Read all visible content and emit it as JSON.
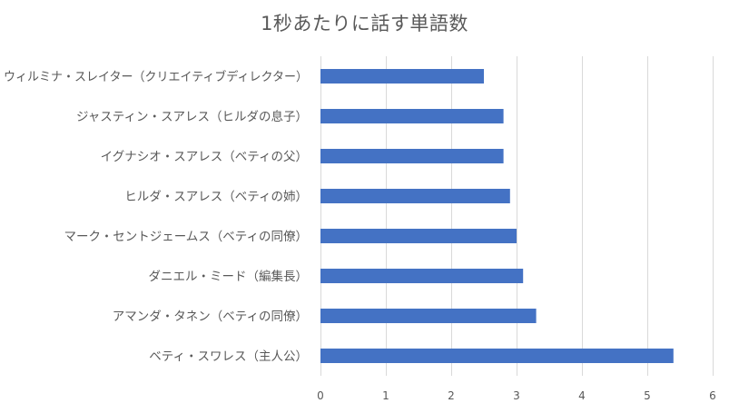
{
  "chart_data": {
    "type": "bar",
    "orientation": "horizontal",
    "title": "1秒あたりに話す単語数",
    "xlabel": "",
    "ylabel": "",
    "xlim": [
      0,
      6
    ],
    "xticks": [
      0,
      1,
      2,
      3,
      4,
      5,
      6
    ],
    "grid": true,
    "legend": "none",
    "bar_color": "#4472c4",
    "categories": [
      "ウィルミナ・スレイター（クリエイティブディレクター）",
      "ジャスティン・スアレス（ヒルダの息子）",
      "イグナシオ・スアレス（ベティの父）",
      "ヒルダ・スアレス（ベティの姉）",
      "マーク・セントジェームス（ベティの同僚）",
      "ダニエル・ミード（編集長）",
      "アマンダ・タネン（ベティの同僚）",
      "ベティ・スワレス（主人公）"
    ],
    "values": [
      2.5,
      2.8,
      2.8,
      2.9,
      3.0,
      3.1,
      3.3,
      5.4
    ]
  }
}
